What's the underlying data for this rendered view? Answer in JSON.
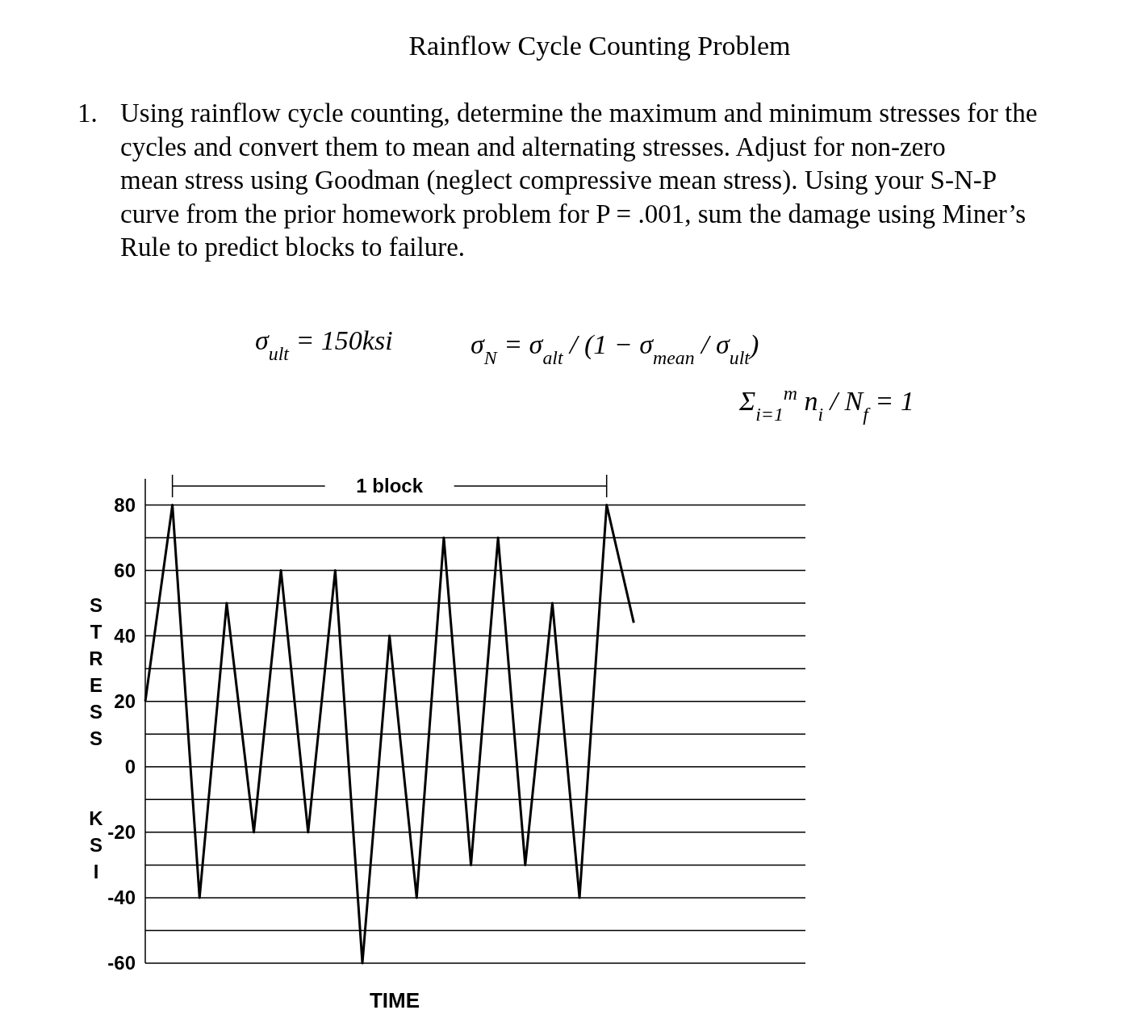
{
  "chart_data": {
    "type": "line",
    "title": "Rainflow Cycle Counting Problem",
    "annotations": [
      "1. Using rainflow cycle counting, determine the maximum and minimum stresses for the cycles and convert them to mean and alternating stresses.  Adjust for non-zero mean stress using Goodman (neglect compressive mean stress).  Using your S-N-P curve from the prior homework problem for P = .001, sum the damage using Miner’s Rule to predict blocks to failure.",
      "σ$_{ult}$ = 150ksi",
      "σ$_{N}$ = σ$_{alt}$ / (1 − σ$_{mean}$ / σ$_{ult}$)",
      "Σ$_{i=1}$$^{m}$ n$_{i}$ / N$_{f}$ = 1",
      "1 block"
    ],
    "xlabel": "TIME",
    "ylabel": "STRESS  KSI",
    "categories": [
      null,
      null,
      null,
      null,
      null,
      null,
      null,
      null,
      null,
      null,
      null,
      null,
      null,
      null,
      null,
      null,
      null,
      null,
      null
    ],
    "series": [
      {
        "color": "#000000",
        "values": [
          20,
          80,
          -40,
          50,
          -20,
          60,
          -20,
          60,
          -60,
          40,
          -40,
          70,
          -30,
          70,
          -30,
          50,
          -40,
          80,
          44
        ]
      }
    ],
    "ylim": [
      -60,
      88
    ],
    "yticks": [
      -60,
      {
        "value": -50,
        "label": null
      },
      -40,
      {
        "value": -30,
        "label": null
      },
      -20,
      {
        "value": -10,
        "label": null
      },
      0,
      {
        "value": 10,
        "label": null
      },
      20,
      {
        "value": 30,
        "label": null
      },
      40,
      {
        "value": 50,
        "label": null
      },
      60,
      {
        "value": 70,
        "label": null
      },
      80
    ],
    "grid": "y",
    "marker": "none",
    "line_style": "solid"
  }
}
